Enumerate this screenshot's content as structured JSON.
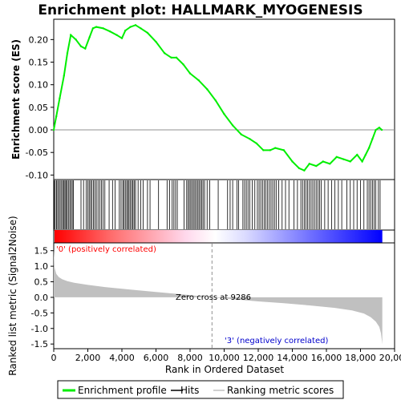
{
  "chart_data": {
    "type": "line",
    "title": "Enrichment plot: HALLMARK_MYOGENESIS",
    "es_panel": {
      "ylabel": "Enrichment score (ES)",
      "ylim": [
        -0.11,
        0.245
      ],
      "yticks": [
        -0.1,
        -0.05,
        0.0,
        0.05,
        0.1,
        0.15,
        0.2
      ],
      "ytick_labels": [
        "-0.10",
        "-0.05",
        "0.00",
        "0.05",
        "0.10",
        "0.15",
        "0.20"
      ],
      "series": [
        {
          "name": "Enrichment profile",
          "color": "#00ee00",
          "x": [
            0,
            150,
            350,
            600,
            800,
            1000,
            1300,
            1600,
            1850,
            2100,
            2300,
            2500,
            2900,
            3300,
            3700,
            4000,
            4200,
            4500,
            4800,
            5100,
            5500,
            6000,
            6500,
            6900,
            7200,
            7600,
            8000,
            8500,
            9000,
            9500,
            10000,
            10500,
            11000,
            11500,
            11900,
            12300,
            12700,
            13000,
            13500,
            14000,
            14400,
            14700,
            15000,
            15400,
            15800,
            16200,
            16600,
            17000,
            17400,
            17800,
            18100,
            18300,
            18500,
            18700,
            18900,
            19100,
            19250
          ],
          "y": [
            0.0,
            0.03,
            0.07,
            0.12,
            0.17,
            0.21,
            0.2,
            0.185,
            0.18,
            0.205,
            0.225,
            0.228,
            0.225,
            0.218,
            0.21,
            0.203,
            0.22,
            0.228,
            0.232,
            0.225,
            0.215,
            0.195,
            0.17,
            0.16,
            0.16,
            0.145,
            0.125,
            0.11,
            0.09,
            0.065,
            0.035,
            0.01,
            -0.01,
            -0.02,
            -0.03,
            -0.045,
            -0.045,
            -0.04,
            -0.045,
            -0.07,
            -0.085,
            -0.09,
            -0.075,
            -0.08,
            -0.07,
            -0.075,
            -0.06,
            -0.065,
            -0.07,
            -0.055,
            -0.07,
            -0.055,
            -0.04,
            -0.02,
            0.0,
            0.005,
            0.0
          ]
        }
      ]
    },
    "hits": {
      "name": "Hits",
      "color": "#000000",
      "positions": [
        30,
        90,
        160,
        230,
        300,
        380,
        460,
        530,
        600,
        660,
        720,
        790,
        860,
        940,
        1010,
        1090,
        1150,
        1600,
        1750,
        1900,
        2000,
        2080,
        2160,
        2240,
        2330,
        2410,
        2500,
        2600,
        2700,
        2800,
        2900,
        3000,
        3250,
        3450,
        3600,
        3850,
        3950,
        4050,
        4120,
        4200,
        4280,
        4350,
        4420,
        4500,
        4580,
        4650,
        4720,
        4800,
        4950,
        5100,
        5250,
        5500,
        5650,
        6150,
        6650,
        6800,
        6950,
        7050,
        7150,
        7250,
        7650,
        7800,
        7880,
        7960,
        8040,
        8120,
        8200,
        8280,
        8360,
        8440,
        8520,
        8600,
        8680,
        8760,
        8850,
        9000,
        9150,
        9650,
        10200,
        10350,
        10500,
        10750,
        10850,
        11100,
        11200,
        11300,
        11400,
        11500,
        11650,
        11800,
        11950,
        12050,
        12150,
        12250,
        12350,
        12450,
        12550,
        12650,
        12750,
        12850,
        12950,
        13050,
        13200,
        13400,
        13600,
        13800,
        14100,
        14300,
        14500,
        14600,
        14700,
        14800,
        14900,
        15000,
        15100,
        15200,
        15300,
        15400,
        15500,
        15600,
        15700,
        15900,
        16100,
        16300,
        16500,
        16700,
        16900,
        17200,
        17400,
        17600,
        17800,
        18000,
        18200,
        18400,
        18500,
        18600,
        18700,
        18800,
        18900,
        19050,
        19150
      ]
    },
    "ranked_metric": {
      "name": "Ranking metric scores",
      "ylabel": "Ranked list metric (Signal2Noise)",
      "ylim": [
        -1.65,
        1.75
      ],
      "yticks": [
        -1.5,
        -1.0,
        -0.5,
        0.0,
        0.5,
        1.0,
        1.5
      ],
      "ytick_labels": [
        "-1.5",
        "-1.0",
        "-0.5",
        "0.0",
        "0.5",
        "1.0",
        "1.5"
      ],
      "fill_color": "#c0c0c0",
      "x": [
        0,
        50,
        150,
        300,
        500,
        800,
        1200,
        2000,
        3000,
        4500,
        6000,
        7500,
        9286,
        10500,
        12000,
        13500,
        15000,
        16500,
        17500,
        18200,
        18600,
        18900,
        19100,
        19200,
        19280
      ],
      "y": [
        1.55,
        0.95,
        0.75,
        0.65,
        0.58,
        0.52,
        0.47,
        0.4,
        0.33,
        0.25,
        0.17,
        0.1,
        0.0,
        -0.06,
        -0.13,
        -0.19,
        -0.26,
        -0.34,
        -0.42,
        -0.52,
        -0.64,
        -0.78,
        -0.95,
        -1.15,
        -1.5
      ]
    },
    "zero_cross": {
      "x": 9286,
      "label": "Zero cross at 9286"
    },
    "positive_label": "'0' (positively correlated)",
    "negative_label": "'3' (negatively correlated)",
    "xlabel": "Rank in Ordered Dataset",
    "xlim": [
      0,
      20000
    ],
    "xticks": [
      0,
      2000,
      4000,
      6000,
      8000,
      10000,
      12000,
      14000,
      16000,
      18000,
      20000
    ],
    "xtick_labels": [
      "0",
      "2,000",
      "4,000",
      "6,000",
      "8,000",
      "10,000",
      "12,000",
      "14,000",
      "16,000",
      "18,000",
      "20,000"
    ],
    "dataset_length": 19280,
    "grid": false,
    "legend": {
      "placement": "bottom",
      "entries": [
        "Enrichment profile",
        "Hits",
        "Ranking metric scores"
      ]
    },
    "colors": {
      "positive": "#ff0000",
      "neutral": "#ffffff",
      "negative": "#0000ff",
      "profile": "#00ee00",
      "zero_line": "#909090"
    }
  }
}
